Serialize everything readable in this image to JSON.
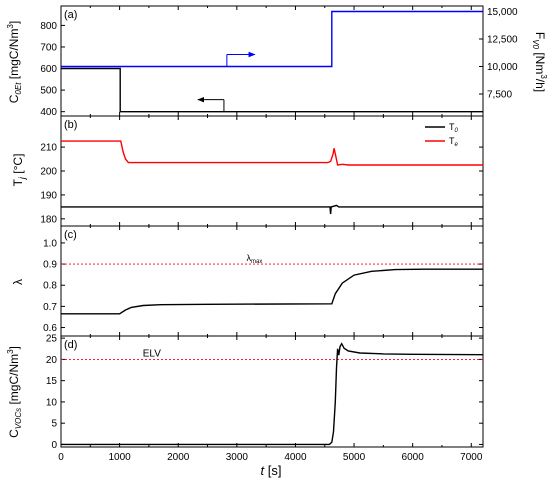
{
  "chart_data": [
    {
      "panel_label": "(a)",
      "type": "line",
      "x_range": [
        0,
        7200
      ],
      "y_left": {
        "label": "C_0Et [mgC/Nm³]",
        "range": [
          380,
          890
        ],
        "ticks": [
          "400",
          "500",
          "600",
          "700",
          "800"
        ]
      },
      "y_right": {
        "label": "F_V0 [Nm³/h]",
        "range": [
          5500,
          15500
        ],
        "ticks": [
          "7,500",
          "10,000",
          "12,500",
          "15,000"
        ]
      },
      "series": [
        {
          "name": "C_0Et",
          "axis": "left",
          "color": "#000000",
          "points": [
            [
              0,
              600
            ],
            [
              1010,
              600
            ],
            [
              1010,
              400
            ],
            [
              7200,
              400
            ]
          ]
        },
        {
          "name": "F_V0",
          "axis": "right",
          "color": "#0000ff",
          "points": [
            [
              0,
              10000
            ],
            [
              4620,
              10000
            ],
            [
              4620,
              15000
            ],
            [
              7200,
              15000
            ]
          ]
        }
      ],
      "arrows": [
        {
          "series": "F_V0",
          "direction": "right",
          "color": "#0000ff"
        },
        {
          "series": "C_0Et",
          "direction": "left",
          "color": "#000000"
        }
      ]
    },
    {
      "panel_label": "(b)",
      "type": "line",
      "x_range": [
        0,
        7200
      ],
      "y_left": {
        "label": "T_j [°C]",
        "range": [
          177,
          223
        ],
        "ticks": [
          "180",
          "190",
          "200",
          "210"
        ]
      },
      "legend": {
        "position": "top-right",
        "entries": [
          {
            "name": "T_0",
            "color": "#000000"
          },
          {
            "name": "T_e",
            "color": "#ff0000"
          }
        ]
      },
      "series": [
        {
          "name": "T_0",
          "color": "#000000",
          "points": [
            [
              0,
              185
            ],
            [
              4590,
              185
            ],
            [
              4600,
              182
            ],
            [
              4610,
              185
            ],
            [
              4700,
              185.6
            ],
            [
              4740,
              185
            ],
            [
              7200,
              185
            ]
          ]
        },
        {
          "name": "T_e",
          "color": "#ff0000",
          "points": [
            [
              0,
              212.5
            ],
            [
              1020,
              212.5
            ],
            [
              1060,
              208
            ],
            [
              1100,
              205
            ],
            [
              1150,
              203.5
            ],
            [
              1300,
              203.5
            ],
            [
              4550,
              203.5
            ],
            [
              4600,
              204
            ],
            [
              4640,
              207
            ],
            [
              4660,
              209.5
            ],
            [
              4690,
              206
            ],
            [
              4720,
              202.5
            ],
            [
              4800,
              202.8
            ],
            [
              4900,
              202.5
            ],
            [
              7200,
              202.5
            ]
          ]
        }
      ]
    },
    {
      "panel_label": "(c)",
      "type": "line",
      "x_range": [
        0,
        7200
      ],
      "y_left": {
        "label": "λ",
        "range": [
          0.56,
          1.08
        ],
        "ticks": [
          "0.6",
          "0.7",
          "0.8",
          "0.9",
          "1.0"
        ]
      },
      "reference_lines": [
        {
          "label": "λ_max",
          "value": 0.9,
          "color": "#ff0000",
          "style": "dotted"
        }
      ],
      "series": [
        {
          "name": "λ",
          "color": "#000000",
          "points": [
            [
              0,
              0.665
            ],
            [
              1000,
              0.665
            ],
            [
              1100,
              0.683
            ],
            [
              1200,
              0.695
            ],
            [
              1400,
              0.704
            ],
            [
              1700,
              0.708
            ],
            [
              2500,
              0.71
            ],
            [
              4620,
              0.712
            ],
            [
              4680,
              0.76
            ],
            [
              4800,
              0.81
            ],
            [
              5000,
              0.848
            ],
            [
              5300,
              0.866
            ],
            [
              5700,
              0.874
            ],
            [
              6200,
              0.876
            ],
            [
              7200,
              0.876
            ]
          ]
        }
      ]
    },
    {
      "panel_label": "(d)",
      "type": "line",
      "x_range": [
        0,
        7200
      ],
      "x_ticks": [
        "0",
        "1000",
        "2000",
        "3000",
        "4000",
        "5000",
        "6000",
        "7000"
      ],
      "xlabel": "t [s]",
      "y_left": {
        "label": "C_VOCs [mgC/Nm³]",
        "range": [
          -0.6,
          25.5
        ],
        "ticks": [
          "0",
          "5",
          "10",
          "15",
          "20",
          "25"
        ]
      },
      "reference_lines": [
        {
          "label": "ELV",
          "value": 20,
          "color": "#ff0000",
          "style": "dotted"
        }
      ],
      "series": [
        {
          "name": "C_VOCs",
          "color": "#000000",
          "points": [
            [
              0,
              0
            ],
            [
              4580,
              0
            ],
            [
              4620,
              0.5
            ],
            [
              4650,
              3
            ],
            [
              4680,
              10
            ],
            [
              4700,
              18
            ],
            [
              4720,
              22.5
            ],
            [
              4740,
              21
            ],
            [
              4760,
              23
            ],
            [
              4790,
              23.7
            ],
            [
              4830,
              22.6
            ],
            [
              4900,
              22
            ],
            [
              5100,
              21.5
            ],
            [
              5500,
              21.3
            ],
            [
              6000,
              21.2
            ],
            [
              7200,
              21.1
            ]
          ]
        }
      ]
    }
  ]
}
